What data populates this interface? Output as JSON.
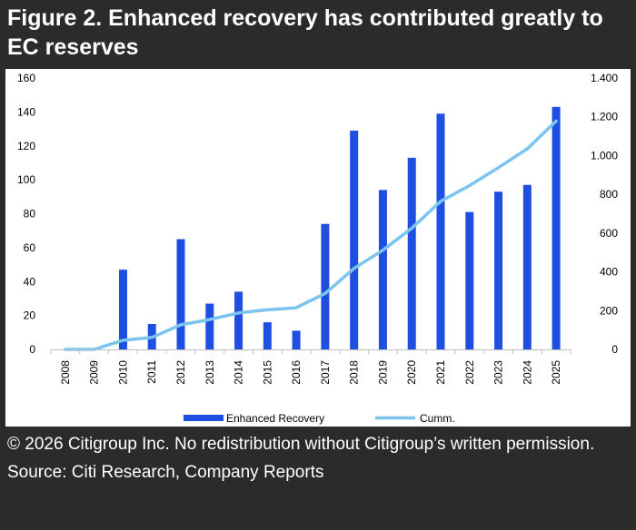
{
  "figure": {
    "title": "Figure 2. Enhanced recovery has contributed greatly to EC reserves"
  },
  "chart_data": {
    "type": "bar",
    "categories": [
      "2008",
      "2009",
      "2010",
      "2011",
      "2012",
      "2013",
      "2014",
      "2015",
      "2016",
      "2017",
      "2018",
      "2019",
      "2020",
      "2021",
      "2022",
      "2023",
      "2024",
      "2025"
    ],
    "series": [
      {
        "name": "Enhanced Recovery",
        "type": "bar",
        "axis": "left",
        "color": "#1f4fe0",
        "values": [
          0,
          0,
          47,
          15,
          65,
          27,
          34,
          16,
          11,
          74,
          129,
          94,
          113,
          139,
          81,
          93,
          97,
          143
        ]
      },
      {
        "name": "Cumm.",
        "type": "line",
        "axis": "right",
        "color": "#7cc4f0",
        "values": [
          0,
          0,
          47,
          62,
          127,
          154,
          188,
          204,
          215,
          289,
          418,
          512,
          625,
          764,
          845,
          938,
          1035,
          1178
        ]
      }
    ],
    "y_left": {
      "min": 0,
      "max": 160,
      "ticks": [
        0,
        20,
        40,
        60,
        80,
        100,
        120,
        140,
        160
      ],
      "tick_labels": [
        "0",
        "20",
        "40",
        "60",
        "80",
        "100",
        "120",
        "140",
        "160"
      ]
    },
    "y_right": {
      "min": 0,
      "max": 1400,
      "ticks": [
        0,
        200,
        400,
        600,
        800,
        1000,
        1200,
        1400
      ],
      "tick_labels": [
        "0",
        "200",
        "400",
        "600",
        "800",
        "1.000",
        "1.200",
        "1.400"
      ]
    },
    "grid": false,
    "legend_position": "bottom"
  },
  "footer": {
    "copyright": "© 2026 Citigroup Inc. No redistribution without Citigroup’s written permission.",
    "source": "Source: Citi Research, Company Reports"
  }
}
